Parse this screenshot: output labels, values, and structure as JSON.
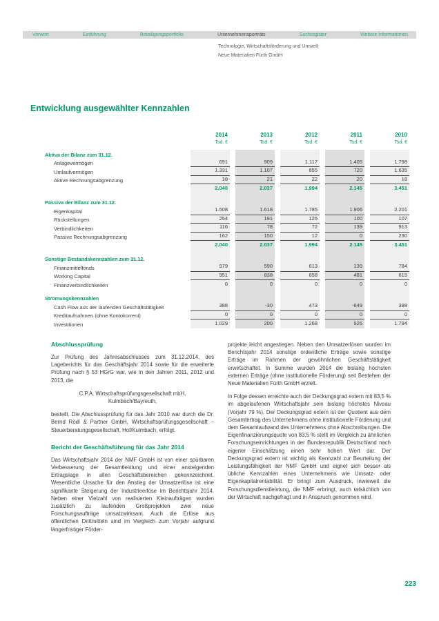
{
  "colors": {
    "accent_green": "#00996a",
    "nav_link_green": "#35a487",
    "stripe_light": "#efefef",
    "stripe_dark": "#dedede"
  },
  "nav": {
    "items": [
      {
        "label": "Vorwort",
        "active": false
      },
      {
        "label": "Einführung",
        "active": false
      },
      {
        "label": "Beteiligungsportfolio",
        "active": false
      },
      {
        "label": "Unternehmensporträts",
        "active": true
      },
      {
        "label": "Suchregister",
        "active": false
      },
      {
        "label": "Weitere Informationen",
        "active": false
      }
    ],
    "breadcrumb_line1": "Technologie, Wirtschaftsförderung und Umwelt",
    "breadcrumb_line2": "Neue Materialien Fürth GmbH"
  },
  "title": "Entwicklung ausgewählter Kennzahlen",
  "table": {
    "years": [
      "2014",
      "2013",
      "2012",
      "2011",
      "2010"
    ],
    "unit": "Tsd. €",
    "groups": [
      {
        "heading": "Aktiva der Bilanz zum 31.12.",
        "rows": [
          {
            "label": "Anlagevermögen",
            "values": [
              "691",
              "909",
              "1.117",
              "1.405",
              "1.798"
            ],
            "underline": true
          },
          {
            "label": "Umlaufvermögen",
            "values": [
              "1.331",
              "1.107",
              "855",
              "720",
              "1.635"
            ],
            "underline": true
          },
          {
            "label": "Aktive Rechnungsabgrenzung",
            "values": [
              "18",
              "21",
              "22",
              "20",
              "18"
            ],
            "underline": true
          }
        ],
        "total": [
          "2.040",
          "2.037",
          "1.994",
          "2.145",
          "3.451"
        ]
      },
      {
        "heading": "Passiva der Bilanz zum 31.12.",
        "rows": [
          {
            "label": "Eigenkapital",
            "values": [
              "1.508",
              "1.618",
              "1.785",
              "1.906",
              "2.201"
            ],
            "underline": true
          },
          {
            "label": "Rückstellungen",
            "values": [
              "254",
              "191",
              "125",
              "100",
              "107"
            ],
            "underline": true
          },
          {
            "label": "Verbindlichkeiten",
            "values": [
              "116",
              "78",
              "72",
              "139",
              "913"
            ],
            "underline": true
          },
          {
            "label": "Passive Rechnungsabgrenzung",
            "values": [
              "162",
              "150",
              "12",
              "0",
              "230"
            ],
            "underline": true
          }
        ],
        "total": [
          "2.040",
          "2.037",
          "1.994",
          "2.145",
          "3.451"
        ]
      },
      {
        "heading": "Sonstige Bestandskennzahlen zum 31.12.",
        "rows": [
          {
            "label": "Finanzmittelfonds",
            "values": [
              "979",
              "590",
              "613",
              "139",
              "784"
            ],
            "underline": true
          },
          {
            "label": "Working Capital",
            "values": [
              "951",
              "838",
              "658",
              "481",
              "615"
            ],
            "underline": true
          },
          {
            "label": "Finanzverbindlichkeiten",
            "values": [
              "0",
              "0",
              "0",
              "0",
              "0"
            ],
            "underline": false
          }
        ],
        "total": null
      },
      {
        "heading": "Strömungskennzahlen",
        "rows": [
          {
            "label": "Cash Flow aus der laufenden Geschäftstätigkeit",
            "values": [
              "388",
              "-30",
              "473",
              "-649",
              "398"
            ],
            "underline": true
          },
          {
            "label": "Kreditaufnahmen (ohne Kontokorrent)",
            "values": [
              "0",
              "0",
              "0",
              "0",
              "0"
            ],
            "underline": true
          },
          {
            "label": "Investitionen",
            "values": [
              "1.029",
              "200",
              "1.268",
              "926",
              "1.794"
            ],
            "underline": false
          }
        ],
        "total": null
      }
    ]
  },
  "articles": {
    "left": {
      "heading1": "Abschlussprüfung",
      "p1": "Zur Prüfung des Jahresabschlusses zum 31.12.2014, des Lageberichts für das Geschäftsjahr 2014 sowie für die erweiterte Prüfung nach § 53 HGrG war, wie in den Jahren 2011, 2012 und 2013, die",
      "cpa_line1": "C.P.A. Wirtschaftsprüfungsgesellschaft mbH,",
      "cpa_line2": "Kulmbach/Bayreuth,",
      "p2": "bestellt. Die Abschlussprüfung für das Jahr 2010 war durch die Dr. Bernd Rödl & Partner GmbH, Wirtschaftsprüfungsgesellschaft – Steuerberatungsgesellschaft, Hof/Kulmbach, erfolgt.",
      "heading2": "Bericht der Geschäftsführung für das Jahr 2014",
      "p3": "Das Wirtschaftsjahr 2014 der NMF GmbH ist von einer spürbaren Verbesserung der Gesamtleistung und einer ansteigenden Ertragslage in allen Geschäftsbereichen gekennzeichnet. Wesentliche Ursache für den Anstieg der Umsatzerlöse ist eine signifikante Steigerung der Industrieerlöse im Berichtsjahr 2014. Neben einer Vielzahl von realisierten Kleinaufträgen wurden zusätzlich zu laufenden Großprojekten zwei neue Forschungsaufträge umsatzwirksam. Auch die Erlöse aus öffentlichen Drittmitteln sind im Vergleich zum Vorjahr aufgrund längerfristiger Förder-"
    },
    "right": {
      "p1": "projekte leicht angestiegen. Neben den Umsatzerlösen wurden im Berichtsjahr 2014 sonstige ordentliche Erträge sowie sonstige Erträge im Rahmen der gewöhnlichen Geschäftstätigkeit erwirtschaftet. In Summe wurden 2014 die bislang höchsten externen Erträge (ohne institutionelle Förderung) seit Bestehen der Neue Materialien Fürth GmbH erzielt.",
      "p2": "In Folge dessen erreichte auch der Deckungsgrad extern mit 83,5 % im abgelaufenen Wirtschaftsjahr sein bislang höchstes Niveau (Vorjahr 79 %). Der Deckungsgrad extern ist der Quotient aus dem Gesamtertrag des Unternehmens ohne institutionelle Förderung und dem Gesamtaufwand des Unternehmens ohne Abschreibungen. Die Eigenfinanzierungsquote von 83,5 % stellt im Vergleich zu ähnlichen Forschungseinrichtungen in der Bundesrepublik Deutschland nach eigener Einschätzung einen sehr hohen Wert dar. Der Deckungsgrad extern ist wichtig als Kennzahl zur Beurteilung der Leistungsfähigkeit der NMF GmbH und eignet sich besser als übliche Kennzahlen eines Unternehmens wie Umsatz- oder Eigenkapitalrentabilität. Er bringt zum Ausdruck, inwieweit die Forschungsdienstleistung, die NMF erbringt, auch tatsächlich von der Wirtschaft nachgefragt und in Anspruch genommen wird."
    }
  },
  "page_number": "223"
}
